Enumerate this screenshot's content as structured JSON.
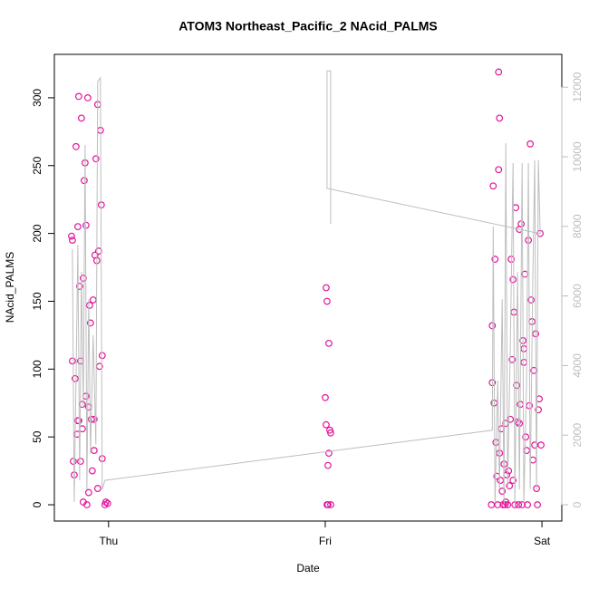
{
  "chart_data": {
    "type": "scatter",
    "title": "ATOM3 Northeast_Pacific_2 NAcid_PALMS",
    "xlabel": "Date",
    "ylabel": "NAcid_PALMS",
    "xlim": [
      -6.0,
      50.2
    ],
    "xticks": [
      {
        "value": 0,
        "label": "Thu"
      },
      {
        "value": 24,
        "label": "Fri"
      },
      {
        "value": 48,
        "label": "Sat"
      }
    ],
    "ylim": [
      -12,
      332
    ],
    "yticks": [
      0,
      50,
      100,
      150,
      200,
      250,
      300
    ],
    "y2lim": [
      -469,
      12943
    ],
    "y2ticks": [
      0,
      2000,
      4000,
      6000,
      8000,
      10000,
      12000
    ],
    "series": [
      {
        "color": "#e4139b",
        "x": [
          -4.1,
          -4.0,
          -4.0,
          -3.9,
          -3.8,
          -3.7,
          -3.6,
          -3.5,
          -3.4,
          -3.4,
          -3.3,
          -3.2,
          -3.1,
          -3.1,
          -3.0,
          -2.9,
          -2.8,
          -2.8,
          -2.7,
          -2.6,
          -2.5,
          -2.4,
          -2.3,
          -2.2,
          -2.1,
          -2.0,
          -1.9,
          -1.8,
          -1.7,
          -1.6,
          -1.5,
          -1.4,
          -1.3,
          -1.2,
          -1.1,
          -1.0,
          -0.9,
          -0.8,
          -0.7,
          -0.7,
          -0.4,
          -0.3,
          -0.1,
          -2.2,
          -2.5,
          -3.3,
          -2.9,
          -1.6,
          -1.2,
          24.0,
          24.1,
          24.2,
          24.2,
          24.3,
          24.4,
          24.5,
          24.4,
          24.1,
          24.3,
          24.6,
          24.6,
          42.4,
          42.5,
          42.5,
          42.6,
          42.7,
          42.8,
          42.9,
          43.0,
          43.1,
          43.2,
          43.3,
          43.4,
          43.5,
          43.6,
          43.7,
          43.8,
          43.9,
          44.0,
          44.1,
          44.2,
          44.3,
          44.4,
          44.5,
          44.6,
          44.7,
          44.8,
          44.9,
          45.0,
          45.1,
          45.2,
          45.3,
          45.4,
          45.5,
          45.6,
          45.7,
          45.8,
          45.9,
          46.0,
          46.1,
          46.2,
          46.3,
          46.4,
          46.5,
          46.6,
          46.7,
          46.8,
          46.9,
          47.0,
          47.1,
          47.2,
          47.3,
          47.4,
          47.5,
          47.6,
          47.7,
          47.8,
          47.9,
          43.3,
          43.2,
          44.8,
          45.5,
          46.0,
          44.0
        ],
        "values": [
          198,
          195,
          106,
          32,
          22,
          93,
          264,
          52,
          62,
          205,
          301,
          161,
          106,
          32,
          285,
          74,
          167,
          2,
          239,
          252,
          206,
          0,
          300,
          72,
          147,
          134,
          63,
          25,
          151,
          63,
          184,
          255,
          180,
          295,
          187,
          102,
          276,
          221,
          110,
          34,
          0,
          2,
          1,
          9,
          80,
          62,
          56,
          40,
          12,
          79,
          59,
          150,
          0,
          0,
          38,
          55,
          119,
          160,
          29,
          0,
          53,
          0,
          90,
          132,
          235,
          75,
          181,
          46,
          21,
          0,
          247,
          38,
          18,
          56,
          10,
          0,
          30,
          0,
          2,
          22,
          0,
          25,
          14,
          63,
          181,
          107,
          166,
          142,
          0,
          219,
          88,
          61,
          0,
          203,
          74,
          207,
          0,
          121,
          105,
          170,
          50,
          40,
          0,
          195,
          73,
          266,
          151,
          135,
          33,
          99,
          44,
          126,
          12,
          0,
          70,
          78,
          200,
          44,
          285,
          319,
          18,
          60,
          115,
          60
        ]
      },
      {
        "type": "line",
        "axis": "y2",
        "color": "#bebebe",
        "x": [
          -4.0,
          -3.8,
          -3.6,
          -3.4,
          -3.2,
          -3.0,
          -2.8,
          -2.6,
          -2.4,
          -2.2,
          -2.0,
          -1.7,
          -1.4,
          -1.2,
          -0.9,
          -0.7,
          -0.4,
          42.5,
          42.6,
          42.8,
          43.1,
          43.3,
          43.6,
          43.8,
          44.0,
          44.2,
          44.5,
          44.8,
          45.0,
          45.3,
          45.5,
          45.8,
          46.0,
          46.3,
          46.5,
          46.7,
          47.0,
          47.2,
          47.4,
          47.6,
          47.8,
          24.2,
          24.2,
          24.6,
          24.6
        ],
        "values": [
          7340,
          80,
          3570,
          7470,
          700,
          6690,
          2790,
          10340,
          440,
          5910,
          1480,
          4870,
          1740,
          12160,
          12270,
          440,
          700,
          2140,
          8000,
          50,
          3570,
          440,
          5910,
          50,
          10390,
          440,
          4610,
          9820,
          50,
          6690,
          440,
          9820,
          50,
          3570,
          9820,
          440,
          6690,
          9900,
          440,
          9900,
          7790,
          9090,
          12470,
          12470,
          8070
        ]
      }
    ]
  }
}
